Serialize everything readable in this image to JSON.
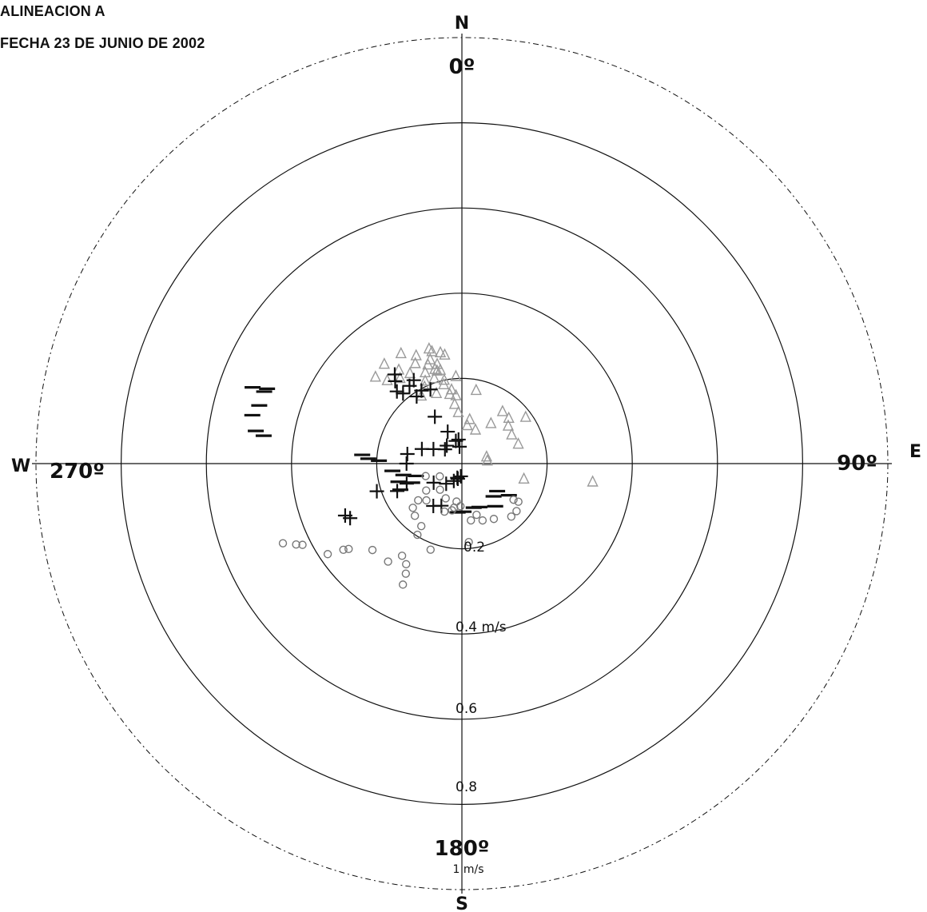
{
  "header": {
    "line1": "ALINEACION A",
    "line2": "FECHA 23 DE JUNIO DE 2002"
  },
  "chart_data": {
    "type": "scatter",
    "projection": "polar",
    "angle_zero": "north",
    "angle_direction": "clockwise",
    "rlim": [
      0,
      1
    ],
    "cardinals": {
      "n": "N",
      "e": "E",
      "s": "S",
      "w": "W"
    },
    "angle_labels": {
      "a0": "0º",
      "a90": "90º",
      "a180": "180º",
      "a270": "270º"
    },
    "radial_tick_labels": [
      "0.2",
      "0.4 m/s",
      "0.6",
      "0.8",
      "1 m/s"
    ],
    "rings": [
      0.2,
      0.4,
      0.6,
      0.8,
      1.0
    ],
    "colors": {
      "dark": "#111111",
      "light": "#9a9a9a",
      "grid": "#111111"
    },
    "series": [
      {
        "marker": "triangle",
        "color": "#9a9a9a",
        "points": [
          {
            "dir": 315,
            "speed": 0.287
          },
          {
            "dir": 318,
            "speed": 0.262
          },
          {
            "dir": 322,
            "speed": 0.296
          },
          {
            "dir": 326,
            "speed": 0.265
          },
          {
            "dir": 330,
            "speed": 0.244
          },
          {
            "dir": 335,
            "speed": 0.259
          },
          {
            "dir": 338,
            "speed": 0.23
          },
          {
            "dir": 342,
            "speed": 0.21
          },
          {
            "dir": 345,
            "speed": 0.225
          },
          {
            "dir": 347,
            "speed": 0.19
          },
          {
            "dir": 350,
            "speed": 0.165
          },
          {
            "dir": 353,
            "speed": 0.14
          },
          {
            "dir": 356,
            "speed": 0.12
          },
          {
            "dir": 334,
            "speed": 0.2
          },
          {
            "dir": 340,
            "speed": 0.175
          },
          {
            "dir": 329,
            "speed": 0.185
          },
          {
            "dir": 331,
            "speed": 0.295
          },
          {
            "dir": 337,
            "speed": 0.275
          },
          {
            "dir": 343,
            "speed": 0.255
          },
          {
            "dir": 346,
            "speed": 0.24
          },
          {
            "dir": 344,
            "speed": 0.28
          },
          {
            "dir": 344,
            "speed": 0.23
          },
          {
            "dir": 341,
            "speed": 0.245
          },
          {
            "dir": 324,
            "speed": 0.247
          },
          {
            "dir": 336,
            "speed": 0.212
          },
          {
            "dir": 348,
            "speed": 0.2
          },
          {
            "dir": 352,
            "speed": 0.175
          },
          {
            "dir": 347,
            "speed": 0.225
          },
          {
            "dir": 345,
            "speed": 0.272
          },
          {
            "dir": 349,
            "speed": 0.265
          },
          {
            "dir": 351,
            "speed": 0.258
          },
          {
            "dir": 355,
            "speed": 0.16
          },
          {
            "dir": 10,
            "speed": 0.105
          },
          {
            "dir": 60,
            "speed": 0.135
          },
          {
            "dir": 36,
            "speed": 0.116
          },
          {
            "dir": 38,
            "speed": 0.155
          },
          {
            "dir": 46,
            "speed": 0.153
          },
          {
            "dir": 51,
            "speed": 0.14
          },
          {
            "dir": 54,
            "speed": 0.185
          },
          {
            "dir": 71,
            "speed": 0.14
          },
          {
            "dir": 75,
            "speed": 0.06
          },
          {
            "dir": 84,
            "speed": 0.06
          },
          {
            "dir": 104,
            "speed": 0.15
          },
          {
            "dir": 98,
            "speed": 0.31
          },
          {
            "dir": 11,
            "speed": 0.175
          },
          {
            "dir": 356,
            "speed": 0.205
          },
          {
            "dir": 8,
            "speed": 0.09
          },
          {
            "dir": 22,
            "speed": 0.085
          }
        ]
      },
      {
        "marker": "plus",
        "color": "#111111",
        "points": [
          {
            "dir": 321,
            "speed": 0.249
          },
          {
            "dir": 326,
            "speed": 0.22
          },
          {
            "dir": 318,
            "speed": 0.228
          },
          {
            "dir": 331,
            "speed": 0.196
          },
          {
            "dir": 337,
            "speed": 0.189
          },
          {
            "dir": 330,
            "speed": 0.127
          },
          {
            "dir": 323,
            "speed": 0.262
          },
          {
            "dir": 320,
            "speed": 0.215
          },
          {
            "dir": 330,
            "speed": 0.226
          },
          {
            "dir": 326,
            "speed": 0.19
          },
          {
            "dir": 310,
            "speed": 0.052
          },
          {
            "dir": 320,
            "speed": 0.055
          },
          {
            "dir": 336,
            "speed": 0.082
          },
          {
            "dir": 345,
            "speed": 0.055
          },
          {
            "dir": 352,
            "speed": 0.04
          },
          {
            "dir": 352,
            "speed": 0.057
          },
          {
            "dir": 297,
            "speed": 0.075
          },
          {
            "dir": 290,
            "speed": 0.1
          },
          {
            "dir": 280,
            "speed": 0.13
          },
          {
            "dir": 270,
            "speed": 0.13
          },
          {
            "dir": 250,
            "speed": 0.138
          },
          {
            "dir": 236,
            "speed": 0.08
          },
          {
            "dir": 218,
            "speed": 0.06
          },
          {
            "dir": 205,
            "speed": 0.045
          },
          {
            "dir": 252,
            "speed": 0.21
          },
          {
            "dir": 247,
            "speed": 0.165
          },
          {
            "dir": 244,
            "speed": 0.292
          },
          {
            "dir": 246,
            "speed": 0.3
          },
          {
            "dir": 195,
            "speed": 0.037
          },
          {
            "dir": 198,
            "speed": 0.035
          },
          {
            "dir": 214,
            "speed": 0.12
          },
          {
            "dir": 206,
            "speed": 0.11
          },
          {
            "dir": 185,
            "speed": 0.03
          }
        ]
      },
      {
        "marker": "dash",
        "color": "#111111",
        "points": [
          {
            "dir": 290,
            "speed": 0.523
          },
          {
            "dir": 290,
            "speed": 0.494
          },
          {
            "dir": 291,
            "speed": 0.49
          },
          {
            "dir": 286,
            "speed": 0.495
          },
          {
            "dir": 283,
            "speed": 0.505
          },
          {
            "dir": 279,
            "speed": 0.49
          },
          {
            "dir": 278,
            "speed": 0.47
          },
          {
            "dir": 273,
            "speed": 0.22
          },
          {
            "dir": 272,
            "speed": 0.195
          },
          {
            "dir": 264,
            "speed": 0.164
          },
          {
            "dir": 259,
            "speed": 0.14
          },
          {
            "dir": 254,
            "speed": 0.155
          },
          {
            "dir": 247,
            "speed": 0.157
          },
          {
            "dir": 255,
            "speed": 0.112
          },
          {
            "dir": 249,
            "speed": 0.125
          },
          {
            "dir": 165,
            "speed": 0.107
          },
          {
            "dir": 158,
            "speed": 0.11
          },
          {
            "dir": 136,
            "speed": 0.107
          },
          {
            "dir": 142,
            "speed": 0.127
          },
          {
            "dir": 128,
            "speed": 0.105
          },
          {
            "dir": 124,
            "speed": 0.133
          },
          {
            "dir": 185,
            "speed": 0.115
          },
          {
            "dir": 178,
            "speed": 0.113
          },
          {
            "dir": 275,
            "speed": 0.235
          }
        ]
      },
      {
        "marker": "circle",
        "color": "#777777",
        "points": [
          {
            "dir": 246,
            "speed": 0.46
          },
          {
            "dir": 244,
            "speed": 0.433
          },
          {
            "dir": 243,
            "speed": 0.42
          },
          {
            "dir": 236,
            "speed": 0.38
          },
          {
            "dir": 234,
            "speed": 0.344
          },
          {
            "dir": 233,
            "speed": 0.333
          },
          {
            "dir": 226,
            "speed": 0.292
          },
          {
            "dir": 217,
            "speed": 0.288
          },
          {
            "dir": 213,
            "speed": 0.258
          },
          {
            "dir": 209,
            "speed": 0.27
          },
          {
            "dir": 207,
            "speed": 0.29
          },
          {
            "dir": 206,
            "speed": 0.316
          },
          {
            "dir": 200,
            "speed": 0.215
          },
          {
            "dir": 212,
            "speed": 0.197
          },
          {
            "dir": 213,
            "speed": 0.175
          },
          {
            "dir": 222,
            "speed": 0.165
          },
          {
            "dir": 224,
            "speed": 0.12
          },
          {
            "dir": 230,
            "speed": 0.134
          },
          {
            "dir": 228,
            "speed": 0.155
          },
          {
            "dir": 192,
            "speed": 0.112
          },
          {
            "dir": 200,
            "speed": 0.12
          },
          {
            "dir": 175,
            "speed": 0.185
          },
          {
            "dir": 171,
            "speed": 0.135
          },
          {
            "dir": 164,
            "speed": 0.125
          },
          {
            "dir": 160,
            "speed": 0.142
          },
          {
            "dir": 150,
            "speed": 0.15
          },
          {
            "dir": 137,
            "speed": 0.17
          },
          {
            "dir": 131,
            "speed": 0.17
          },
          {
            "dir": 125,
            "speed": 0.148
          },
          {
            "dir": 124,
            "speed": 0.16
          },
          {
            "dir": 220,
            "speed": 0.08
          },
          {
            "dir": 233,
            "speed": 0.105
          },
          {
            "dir": 240,
            "speed": 0.06
          },
          {
            "dir": 251,
            "speed": 0.09
          },
          {
            "dir": 188,
            "speed": 0.09
          },
          {
            "dir": 190,
            "speed": 0.105
          },
          {
            "dir": 182,
            "speed": 0.1
          },
          {
            "dir": 205,
            "speed": 0.09
          }
        ]
      }
    ]
  }
}
